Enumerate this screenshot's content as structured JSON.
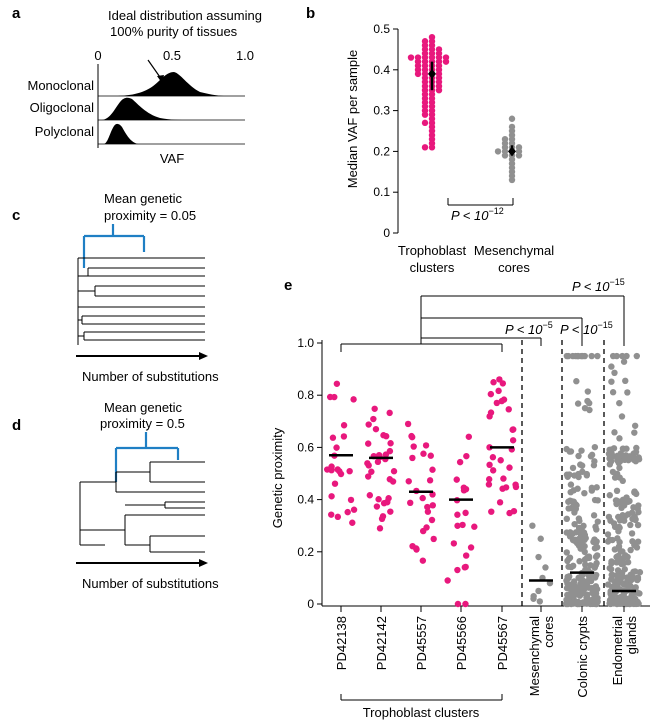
{
  "colors": {
    "trophoblast": "#e8187d",
    "grey": "#909090",
    "tree": "#1f7fc4",
    "black": "#000000"
  },
  "panel_a": {
    "label": "a",
    "annotation_line1": "Ideal distribution assuming",
    "annotation_line2": "100% purity of tissues",
    "ticks": [
      "0",
      "0.5",
      "1.0"
    ],
    "rows": [
      "Monoclonal",
      "Oligoclonal",
      "Polyclonal"
    ],
    "xlabel": "VAF"
  },
  "panel_b": {
    "label": "b",
    "ylabel": "Median VAF per sample",
    "yticks": [
      "0",
      "0.1",
      "0.2",
      "0.3",
      "0.4",
      "0.5"
    ],
    "cat1_line1": "Trophoblast",
    "cat1_line2": "clusters",
    "cat2_line1": "Mesenchymal",
    "cat2_line2": "cores",
    "pvalue": "P < 10",
    "pexp": "−12"
  },
  "panel_c": {
    "label": "c",
    "line1": "Mean genetic",
    "line2": "proximity = 0.05",
    "xlabel": "Number of  substitutions"
  },
  "panel_d": {
    "label": "d",
    "line1": "Mean genetic",
    "line2": "proximity = 0.5",
    "xlabel": "Number of  substitutions"
  },
  "panel_e": {
    "label": "e",
    "ylabel": "Genetic proximity",
    "yticks": [
      "0",
      "0.2",
      "0.4",
      "0.6",
      "0.8",
      "1.0"
    ],
    "categories": [
      "PD42138",
      "PD42142",
      "PD45557",
      "PD45566",
      "PD45567",
      "Mesenchymal",
      "Colonic crypts",
      "Endometrial"
    ],
    "cat_line2": {
      "Mesenchymal": "cores",
      "Endometrial": "glands"
    },
    "group_label": "Trophoblast clusters",
    "p1": "P < 10",
    "p1exp": "−5",
    "p2": "P < 10",
    "p2exp": "−15",
    "p3": "P < 10",
    "p3exp": "−15"
  },
  "chart_data": [
    {
      "type": "area",
      "panel": "a",
      "xlabel": "VAF",
      "xlim": [
        0,
        1
      ],
      "series": [
        {
          "name": "Monoclonal",
          "mode": 0.5
        },
        {
          "name": "Oligoclonal",
          "mode": 0.22
        },
        {
          "name": "Polyclonal",
          "mode": 0.12
        }
      ]
    },
    {
      "type": "scatter",
      "panel": "b",
      "ylabel": "Median VAF per sample",
      "ylim": [
        0,
        0.5
      ],
      "categories": [
        "Trophoblast clusters",
        "Mesenchymal cores"
      ],
      "series": [
        {
          "name": "Trophoblast clusters",
          "median": 0.39,
          "q1": 0.35,
          "q3": 0.42,
          "values": [
            0.48,
            0.47,
            0.47,
            0.46,
            0.46,
            0.45,
            0.45,
            0.45,
            0.44,
            0.44,
            0.44,
            0.43,
            0.43,
            0.43,
            0.43,
            0.43,
            0.43,
            0.42,
            0.42,
            0.42,
            0.42,
            0.42,
            0.41,
            0.41,
            0.41,
            0.41,
            0.4,
            0.4,
            0.4,
            0.4,
            0.39,
            0.39,
            0.39,
            0.39,
            0.38,
            0.38,
            0.38,
            0.37,
            0.37,
            0.37,
            0.36,
            0.36,
            0.36,
            0.35,
            0.35,
            0.35,
            0.34,
            0.34,
            0.33,
            0.33,
            0.32,
            0.32,
            0.31,
            0.31,
            0.3,
            0.3,
            0.29,
            0.29,
            0.28,
            0.27,
            0.27,
            0.26,
            0.25,
            0.24,
            0.23,
            0.22,
            0.21,
            0.21
          ]
        },
        {
          "name": "Mesenchymal cores",
          "median": 0.2,
          "q1": 0.19,
          "q3": 0.215,
          "values": [
            0.28,
            0.26,
            0.25,
            0.24,
            0.23,
            0.23,
            0.22,
            0.22,
            0.21,
            0.21,
            0.21,
            0.2,
            0.2,
            0.2,
            0.2,
            0.19,
            0.19,
            0.19,
            0.18,
            0.17,
            0.16,
            0.15,
            0.14,
            0.13
          ]
        }
      ]
    },
    {
      "type": "scatter",
      "panel": "e",
      "ylabel": "Genetic proximity",
      "ylim": [
        0,
        1
      ],
      "categories": [
        "PD42138",
        "PD42142",
        "PD45557",
        "PD45566",
        "PD45567",
        "Mesenchymal cores",
        "Colonic crypts",
        "Endometrial glands"
      ],
      "medians": [
        0.57,
        0.56,
        0.43,
        0.4,
        0.6,
        0.09,
        0.12,
        0.05
      ]
    }
  ]
}
